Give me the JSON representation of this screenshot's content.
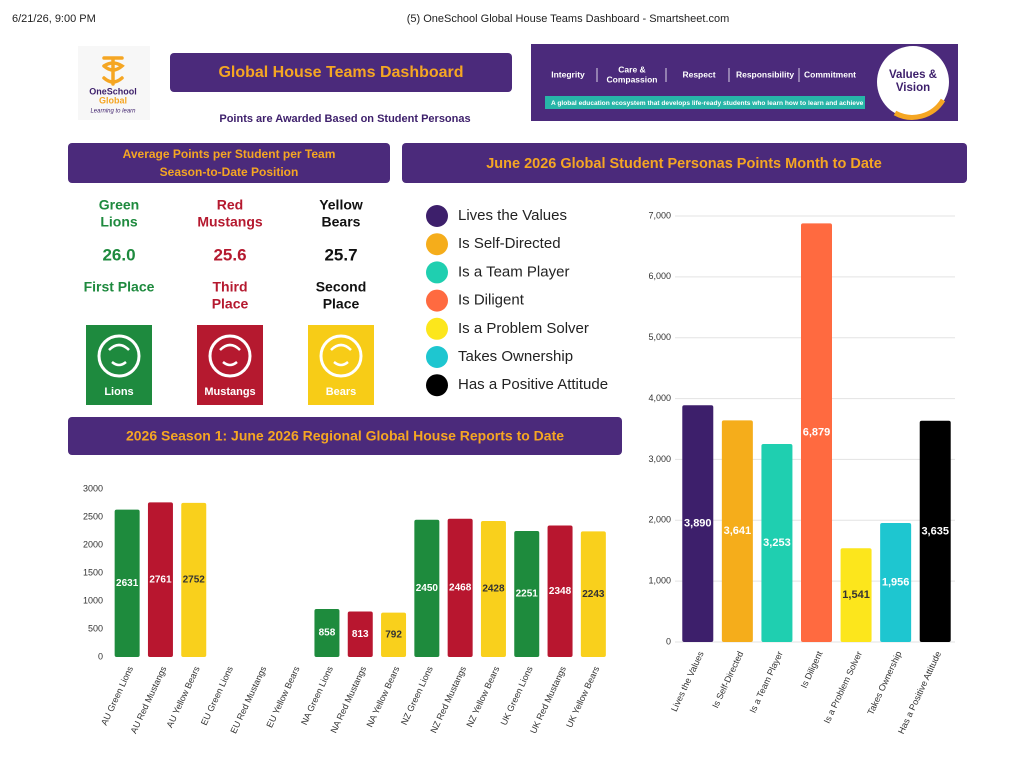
{
  "browser": {
    "timestamp": "6/21/26, 9:00 PM",
    "page_title": "(5) OneSchool Global House Teams Dashboard - Smartsheet.com"
  },
  "logo": {
    "name_line1": "OneSchool",
    "name_line2": "Global",
    "tagline": "Learning to learn"
  },
  "header": {
    "title": "Global House Teams Dashboard",
    "subtitle": "Points are Awarded Based on Student Personas"
  },
  "banner": {
    "items": [
      [
        "Integrity"
      ],
      [
        "Care &",
        "Compassion"
      ],
      [
        "Respect"
      ],
      [
        "Responsibility"
      ],
      [
        "Commitment"
      ]
    ],
    "tagline": "A global education ecosystem that develops life-ready students who learn how to learn and achieve",
    "badge": [
      "Values &",
      "Vision"
    ]
  },
  "standings": {
    "title_lines": [
      "Average Points per Student per Team",
      "Season-to-Date Position"
    ],
    "teams": [
      {
        "name_lines": [
          "Green",
          "Lions"
        ],
        "score": "26.0",
        "position_lines": [
          "First Place"
        ],
        "tile_label": "Lions",
        "color": "#1e8a3e",
        "tile_color": "#1e8a3e"
      },
      {
        "name_lines": [
          "Red",
          "Mustangs"
        ],
        "score": "25.6",
        "position_lines": [
          "Third",
          "Place"
        ],
        "tile_label": "Mustangs",
        "color": "#b5192f",
        "tile_color": "#b5192f"
      },
      {
        "name_lines": [
          "Yellow",
          "Bears"
        ],
        "score": "25.7",
        "position_lines": [
          "Second",
          "Place"
        ],
        "tile_label": "Bears",
        "color": "#111111",
        "tile_color": "#f7cc17"
      }
    ]
  },
  "chart_data": [
    {
      "type": "bar",
      "title": "June 2026 Global Student Personas Points Month to Date",
      "categories": [
        "Lives the Values",
        "Is Self-Directed",
        "Is a Team Player",
        "Is Diligent",
        "Is a Problem Solver",
        "Takes Ownership",
        "Has a Positive Attitude"
      ],
      "values": [
        3890,
        3641,
        3253,
        6879,
        1541,
        1956,
        3635
      ],
      "value_labels": [
        "3,890",
        "3,641",
        "3,253",
        "6,879",
        "1,541",
        "1,956",
        "3,635"
      ],
      "colors": [
        "#3d1f6b",
        "#f5ad1b",
        "#1fcfb0",
        "#ff6a40",
        "#fce61c",
        "#1ec6d0",
        "#000000"
      ],
      "ylim": [
        0,
        7000
      ],
      "yticks": [
        0,
        {
          "value": 1000,
          "label": "1,000"
        },
        {
          "value": 2000,
          "label": "2,000"
        },
        {
          "value": 3000,
          "label": "3,000"
        },
        {
          "value": 4000,
          "label": "4,000"
        },
        {
          "value": 5000,
          "label": "5,000"
        },
        {
          "value": 6000,
          "label": "6,000"
        },
        {
          "value": 7000,
          "label": "7,000"
        }
      ],
      "grid": true,
      "legend": "left"
    },
    {
      "type": "bar",
      "title": "2026 Season 1:  June 2026 Regional Global House Reports to Date",
      "categories": [
        "AU Green Lions",
        "AU Red Mustangs",
        "AU Yellow Bears",
        "EU Green Lions",
        "EU Red Mustangs",
        "EU Yellow Bears",
        "NA Green Lions",
        "NA Red Mustangs",
        "NA Yellow Bears",
        "NZ Green Lions",
        "NZ Red Mustangs",
        "NZ Yellow Bears",
        "UK Green Lions",
        "UK Red Mustangs",
        "UK Yellow Bears"
      ],
      "values": [
        2631,
        2761,
        2752,
        null,
        null,
        null,
        858,
        813,
        792,
        2450,
        2468,
        2428,
        2251,
        2348,
        2243
      ],
      "colors": [
        "#1e8b3d",
        "#b8162f",
        "#f9d01c",
        "#1e8b3d",
        "#b8162f",
        "#f9d01c",
        "#1e8b3d",
        "#b8162f",
        "#f9d01c",
        "#1e8b3d",
        "#b8162f",
        "#f9d01c",
        "#1e8b3d",
        "#b8162f",
        "#f9d01c"
      ],
      "ylim": [
        0,
        3000
      ],
      "yticks": [
        0,
        500,
        1000,
        1500,
        2000,
        2500,
        3000
      ],
      "grid": false
    }
  ]
}
